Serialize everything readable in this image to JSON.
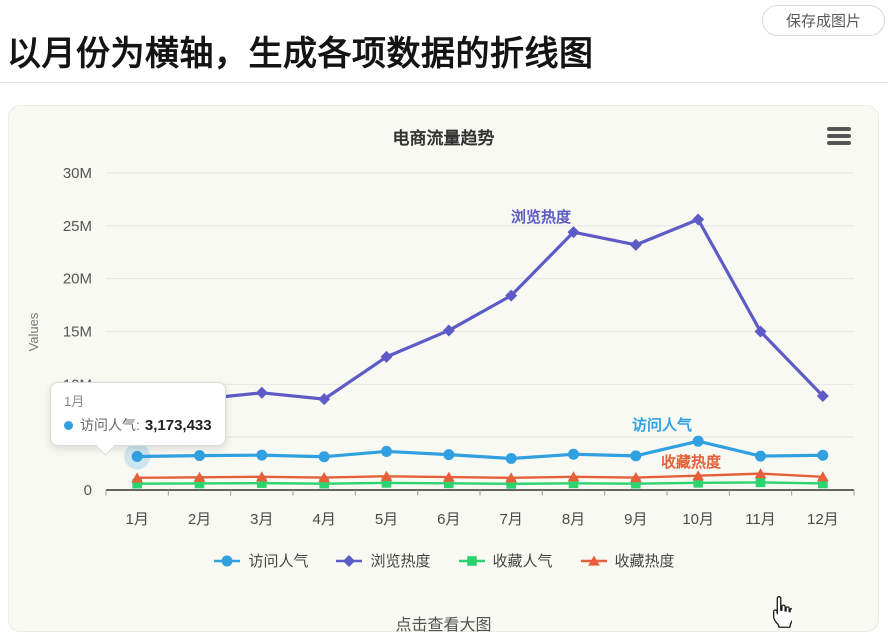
{
  "page": {
    "title": "以月份为横轴，生成各项数据的折线图",
    "save_button_label": "保存成图片",
    "footer_link_label": "点击查看大图"
  },
  "chart": {
    "title": "电商流量趋势"
  },
  "icons": {
    "menu": "hamburger-menu",
    "cursor": "hand-pointer"
  },
  "tooltip": {
    "month": "1月",
    "series_label": "访问人气:",
    "value": "3,173,433",
    "series_color": "#30a0e0"
  },
  "chart_data": {
    "type": "line",
    "title": "电商流量趋势",
    "xlabel": "",
    "ylabel": "Values",
    "categories": [
      "1月",
      "2月",
      "3月",
      "4月",
      "5月",
      "6月",
      "7月",
      "8月",
      "9月",
      "10月",
      "11月",
      "12月"
    ],
    "y_tick_labels": [
      "0",
      "5M",
      "10M",
      "15M",
      "20M",
      "25M",
      "30M"
    ],
    "y_tick_values": [
      0,
      5000000,
      10000000,
      15000000,
      20000000,
      25000000,
      30000000
    ],
    "ylim": [
      0,
      30000000
    ],
    "grid": true,
    "legend_position": "bottom",
    "series": [
      {
        "name": "访问人气",
        "color": "#30a0e0",
        "marker": "circle",
        "values": [
          3173433,
          3250000,
          3300000,
          3150000,
          3650000,
          3350000,
          2980000,
          3380000,
          3230000,
          4620000,
          3210000,
          3290000
        ]
      },
      {
        "name": "浏览热度",
        "color": "#5d5bc5",
        "marker": "diamond",
        "values": [
          9000000,
          8600000,
          9200000,
          8600000,
          12600000,
          15100000,
          18400000,
          24400000,
          23200000,
          25600000,
          15000000,
          8900000
        ]
      },
      {
        "name": "收藏人气",
        "color": "#2cd36e",
        "marker": "square",
        "values": [
          600000,
          620000,
          650000,
          600000,
          670000,
          630000,
          580000,
          630000,
          600000,
          680000,
          720000,
          620000
        ]
      },
      {
        "name": "收藏热度",
        "color": "#e5603a",
        "marker": "triangle",
        "values": [
          1150000,
          1200000,
          1250000,
          1180000,
          1300000,
          1220000,
          1150000,
          1250000,
          1180000,
          1350000,
          1550000,
          1250000
        ]
      }
    ],
    "annotations": [
      {
        "text": "浏览热度",
        "color": "#5d5bc5"
      },
      {
        "text": "访问人气",
        "color": "#30a0e0"
      },
      {
        "text": "收藏热度",
        "color": "#e5603a"
      }
    ],
    "emphasis": {
      "series": 0,
      "index": 0
    }
  }
}
